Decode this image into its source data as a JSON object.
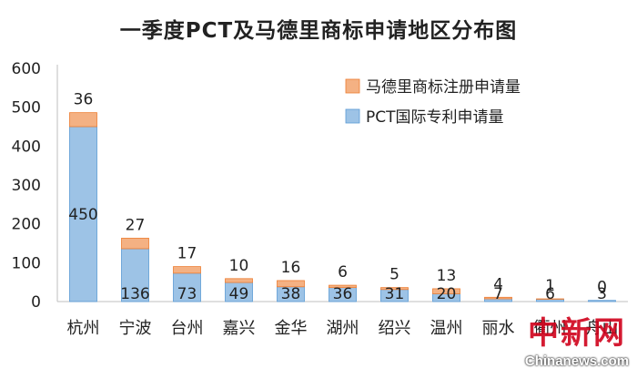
{
  "chart_data": {
    "type": "bar",
    "stacked": true,
    "title": "一季度PCT及马德里商标申请地区分布图",
    "categories": [
      "杭州",
      "宁波",
      "台州",
      "嘉兴",
      "金华",
      "湖州",
      "绍兴",
      "温州",
      "丽水",
      "衢州",
      "舟山"
    ],
    "series": [
      {
        "name": "PCT国际专利申请量",
        "values": [
          450,
          136,
          73,
          49,
          38,
          36,
          31,
          20,
          7,
          6,
          3
        ],
        "color": "#9dc3e6"
      },
      {
        "name": "马德里商标注册申请量",
        "values": [
          36,
          27,
          17,
          10,
          16,
          6,
          5,
          13,
          4,
          1,
          0
        ],
        "color": "#f4b183"
      }
    ],
    "ylim": [
      0,
      600
    ],
    "yticks": [
      0,
      100,
      200,
      300,
      400,
      500,
      600
    ],
    "grid": false,
    "legend": "top-right"
  },
  "watermark": {
    "text": "中新网",
    "site": "Chinanews.com"
  }
}
